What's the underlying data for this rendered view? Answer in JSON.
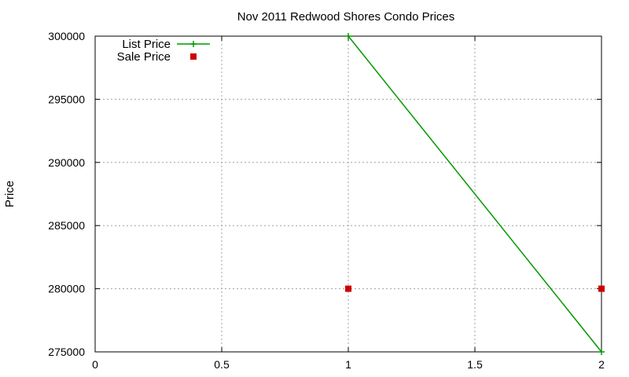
{
  "chart_data": {
    "type": "line",
    "title": "Nov 2011 Redwood Shores Condo Prices",
    "xlabel": "",
    "ylabel": "Price",
    "xlim": [
      0,
      2
    ],
    "ylim": [
      275000,
      300000
    ],
    "x_ticks": [
      "0",
      "0.5",
      "1",
      "1.5",
      "2"
    ],
    "y_ticks": [
      "275000",
      "280000",
      "285000",
      "290000",
      "295000",
      "300000"
    ],
    "grid": true,
    "legend_position": "top-left",
    "series": [
      {
        "name": "List Price",
        "style": "linespoints",
        "marker": "plus",
        "color": "#009900",
        "points": [
          [
            1,
            300000
          ],
          [
            2,
            275000
          ]
        ]
      },
      {
        "name": "Sale Price",
        "style": "points",
        "marker": "square",
        "color": "#cc0000",
        "points": [
          [
            1,
            280000
          ],
          [
            2,
            280000
          ]
        ]
      }
    ]
  }
}
